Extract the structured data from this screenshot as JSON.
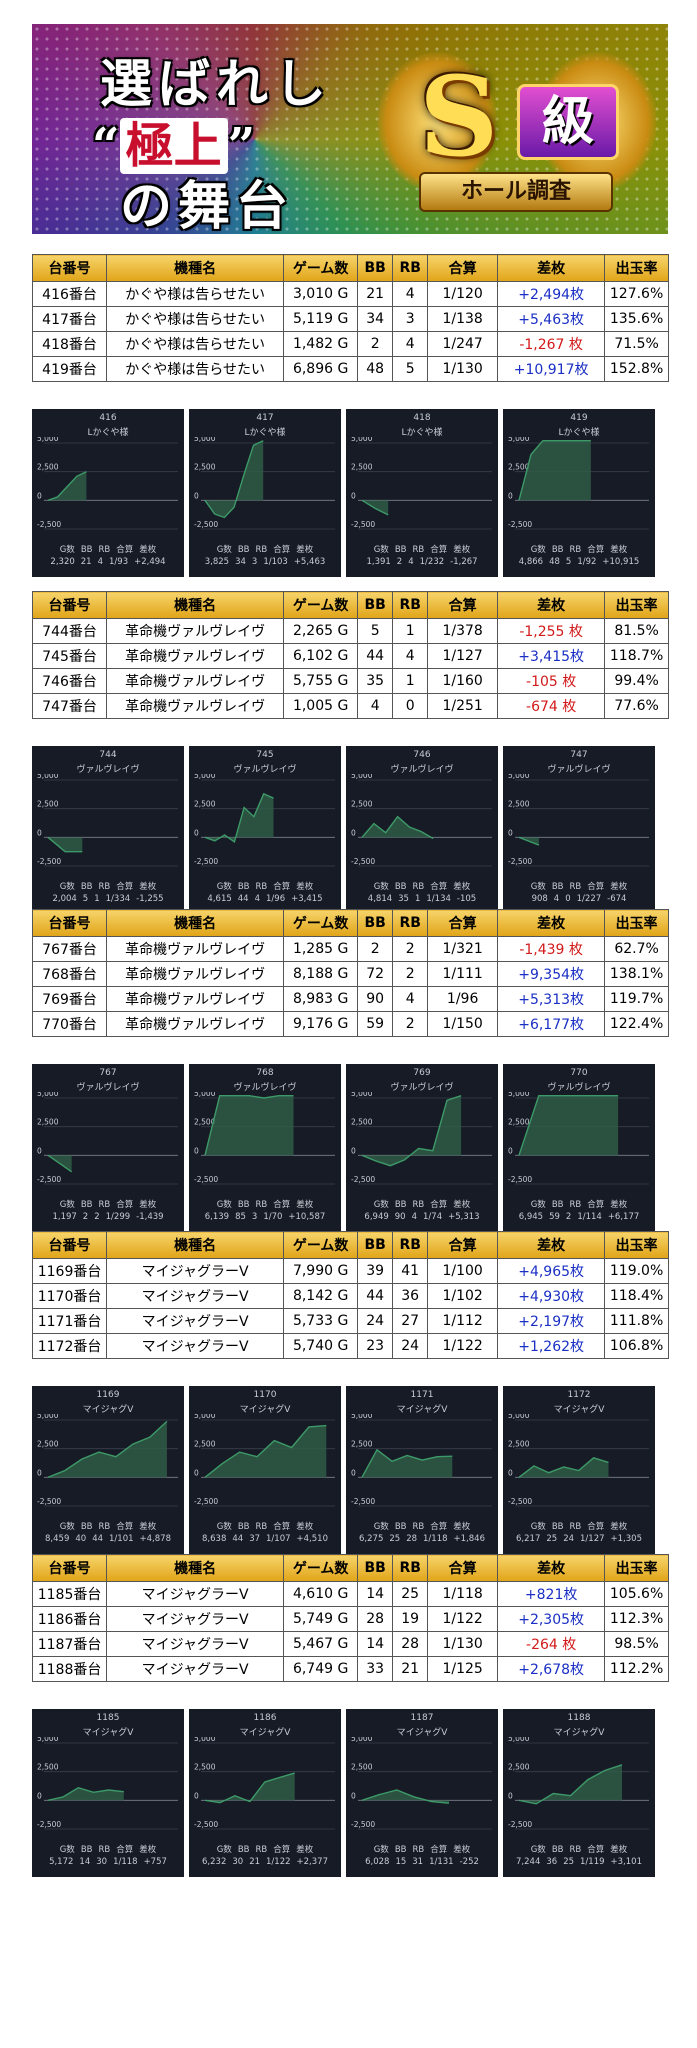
{
  "banner": {
    "line1": "選ばれし",
    "line2_open": "“",
    "line2_em": "極上",
    "line2_close": "”",
    "line3": "の舞台",
    "badge_letter": "S",
    "badge_kyu": "級",
    "badge_ribbon": "ホール調査"
  },
  "table_headers": [
    "台番号",
    "機種名",
    "ゲーム数",
    "BB",
    "RB",
    "合算",
    "差枚",
    "出玉率"
  ],
  "chart_stat_headers": [
    "G数",
    "BB",
    "RB",
    "合算",
    "差枚"
  ],
  "chart_axis": [
    "5,000",
    "2,500",
    "0",
    "-2,500"
  ],
  "sections": [
    {
      "rows": [
        {
          "no": "416番台",
          "model": "かぐや様は告らせたい",
          "games": "3,010 G",
          "bb": "21",
          "rb": "4",
          "total": "1/120",
          "diff": "+2,494枚",
          "rate": "127.6%"
        },
        {
          "no": "417番台",
          "model": "かぐや様は告らせたい",
          "games": "5,119 G",
          "bb": "34",
          "rb": "3",
          "total": "1/138",
          "diff": "+5,463枚",
          "rate": "135.6%"
        },
        {
          "no": "418番台",
          "model": "かぐや様は告らせたい",
          "games": "1,482 G",
          "bb": "2",
          "rb": "4",
          "total": "1/247",
          "diff": "-1,267 枚",
          "rate": "71.5%"
        },
        {
          "no": "419番台",
          "model": "かぐや様は告らせたい",
          "games": "6,896 G",
          "bb": "48",
          "rb": "5",
          "total": "1/130",
          "diff": "+10,917枚",
          "rate": "152.8%"
        }
      ],
      "charts": [
        {
          "id": "416",
          "name": "Lかぐや様",
          "g": "2,320",
          "bb": "21",
          "rb": "4",
          "total": "1/93",
          "diff": "+2,494",
          "curve": [
            0,
            300,
            1200,
            2100,
            2494
          ]
        },
        {
          "id": "417",
          "name": "Lかぐや様",
          "g": "3,825",
          "bb": "34",
          "rb": "3",
          "total": "1/103",
          "diff": "+5,463",
          "curve": [
            0,
            -1200,
            -1500,
            -600,
            2200,
            4800,
            5463
          ]
        },
        {
          "id": "418",
          "name": "Lかぐや様",
          "g": "1,391",
          "bb": "2",
          "rb": "4",
          "total": "1/232",
          "diff": "-1,267",
          "curve": [
            0,
            -700,
            -1267
          ]
        },
        {
          "id": "419",
          "name": "Lかぐや様",
          "g": "4,866",
          "bb": "48",
          "rb": "5",
          "total": "1/92",
          "diff": "+10,915",
          "curve": [
            0,
            4000,
            5200,
            5200,
            5200,
            5200,
            5200
          ]
        }
      ]
    },
    {
      "rows": [
        {
          "no": "744番台",
          "model": "革命機ヴァルヴレイヴ",
          "games": "2,265 G",
          "bb": "5",
          "rb": "1",
          "total": "1/378",
          "diff": "-1,255 枚",
          "rate": "81.5%"
        },
        {
          "no": "745番台",
          "model": "革命機ヴァルヴレイヴ",
          "games": "6,102 G",
          "bb": "44",
          "rb": "4",
          "total": "1/127",
          "diff": "+3,415枚",
          "rate": "118.7%"
        },
        {
          "no": "746番台",
          "model": "革命機ヴァルヴレイヴ",
          "games": "5,755 G",
          "bb": "35",
          "rb": "1",
          "total": "1/160",
          "diff": "-105 枚",
          "rate": "99.4%"
        },
        {
          "no": "747番台",
          "model": "革命機ヴァルヴレイヴ",
          "games": "1,005 G",
          "bb": "4",
          "rb": "0",
          "total": "1/251",
          "diff": "-674 枚",
          "rate": "77.6%"
        }
      ],
      "charts": [
        {
          "id": "744",
          "name": "ヴァルヴレイヴ",
          "g": "2,004",
          "bb": "5",
          "rb": "1",
          "total": "1/334",
          "diff": "-1,255",
          "curve": [
            0,
            -1255,
            -1255
          ]
        },
        {
          "id": "745",
          "name": "ヴァルヴレイヴ",
          "g": "4,615",
          "bb": "44",
          "rb": "4",
          "total": "1/96",
          "diff": "+3,415",
          "curve": [
            0,
            -300,
            200,
            -400,
            2600,
            1800,
            3800,
            3415
          ]
        },
        {
          "id": "746",
          "name": "ヴァルヴレイヴ",
          "g": "4,814",
          "bb": "35",
          "rb": "1",
          "total": "1/134",
          "diff": "-105",
          "curve": [
            0,
            1200,
            400,
            1800,
            900,
            500,
            -105
          ]
        },
        {
          "id": "747",
          "name": "ヴァルヴレイヴ",
          "g": "908",
          "bb": "4",
          "rb": "0",
          "total": "1/227",
          "diff": "-674",
          "curve": [
            0,
            -674
          ]
        }
      ]
    },
    {
      "rows": [
        {
          "no": "767番台",
          "model": "革命機ヴァルヴレイヴ",
          "games": "1,285 G",
          "bb": "2",
          "rb": "2",
          "total": "1/321",
          "diff": "-1,439 枚",
          "rate": "62.7%"
        },
        {
          "no": "768番台",
          "model": "革命機ヴァルヴレイヴ",
          "games": "8,188 G",
          "bb": "72",
          "rb": "2",
          "total": "1/111",
          "diff": "+9,354枚",
          "rate": "138.1%"
        },
        {
          "no": "769番台",
          "model": "革命機ヴァルヴレイヴ",
          "games": "8,983 G",
          "bb": "90",
          "rb": "4",
          "total": "1/96",
          "diff": "+5,313枚",
          "rate": "119.7%"
        },
        {
          "no": "770番台",
          "model": "革命機ヴァルヴレイヴ",
          "games": "9,176 G",
          "bb": "59",
          "rb": "2",
          "total": "1/150",
          "diff": "+6,177枚",
          "rate": "122.4%"
        }
      ],
      "charts": [
        {
          "id": "767",
          "name": "ヴァルヴレイヴ",
          "g": "1,197",
          "bb": "2",
          "rb": "2",
          "total": "1/299",
          "diff": "-1,439",
          "curve": [
            0,
            -1439
          ]
        },
        {
          "id": "768",
          "name": "ヴァルヴレイヴ",
          "g": "6,139",
          "bb": "85",
          "rb": "3",
          "total": "1/70",
          "diff": "+10,587",
          "curve": [
            0,
            5200,
            5200,
            5200,
            5000,
            5200,
            5200
          ]
        },
        {
          "id": "769",
          "name": "ヴァルヴレイヴ",
          "g": "6,949",
          "bb": "90",
          "rb": "4",
          "total": "1/74",
          "diff": "+5,313",
          "curve": [
            0,
            -500,
            -900,
            -400,
            600,
            400,
            4800,
            5313
          ]
        },
        {
          "id": "770",
          "name": "ヴァルヴレイヴ",
          "g": "6,945",
          "bb": "59",
          "rb": "2",
          "total": "1/114",
          "diff": "+6,177",
          "curve": [
            0,
            5200,
            5200,
            5200,
            5200,
            5200
          ]
        }
      ]
    },
    {
      "rows": [
        {
          "no": "1169番台",
          "model": "マイジャグラーV",
          "games": "7,990 G",
          "bb": "39",
          "rb": "41",
          "total": "1/100",
          "diff": "+4,965枚",
          "rate": "119.0%"
        },
        {
          "no": "1170番台",
          "model": "マイジャグラーV",
          "games": "8,142 G",
          "bb": "44",
          "rb": "36",
          "total": "1/102",
          "diff": "+4,930枚",
          "rate": "118.4%"
        },
        {
          "no": "1171番台",
          "model": "マイジャグラーV",
          "games": "5,733 G",
          "bb": "24",
          "rb": "27",
          "total": "1/112",
          "diff": "+2,197枚",
          "rate": "111.8%"
        },
        {
          "no": "1172番台",
          "model": "マイジャグラーV",
          "games": "5,740 G",
          "bb": "23",
          "rb": "24",
          "total": "1/122",
          "diff": "+1,262枚",
          "rate": "106.8%"
        }
      ],
      "charts": [
        {
          "id": "1169",
          "name": "マイジャグV",
          "g": "8,459",
          "bb": "40",
          "rb": "44",
          "total": "1/101",
          "diff": "+4,878",
          "curve": [
            0,
            600,
            1600,
            2200,
            1800,
            2900,
            3500,
            4878
          ]
        },
        {
          "id": "1170",
          "name": "マイジャグV",
          "g": "8,638",
          "bb": "44",
          "rb": "37",
          "total": "1/107",
          "diff": "+4,510",
          "curve": [
            0,
            1200,
            2200,
            1800,
            3200,
            2600,
            4400,
            4510
          ]
        },
        {
          "id": "1171",
          "name": "マイジャグV",
          "g": "6,275",
          "bb": "25",
          "rb": "28",
          "total": "1/118",
          "diff": "+1,846",
          "curve": [
            0,
            2400,
            1400,
            1900,
            1500,
            1800,
            1846
          ]
        },
        {
          "id": "1172",
          "name": "マイジャグV",
          "g": "6,217",
          "bb": "25",
          "rb": "24",
          "total": "1/127",
          "diff": "+1,305",
          "curve": [
            0,
            1000,
            400,
            900,
            600,
            1700,
            1305
          ]
        }
      ]
    },
    {
      "rows": [
        {
          "no": "1185番台",
          "model": "マイジャグラーV",
          "games": "4,610 G",
          "bb": "14",
          "rb": "25",
          "total": "1/118",
          "diff": "+821枚",
          "rate": "105.6%"
        },
        {
          "no": "1186番台",
          "model": "マイジャグラーV",
          "games": "5,749 G",
          "bb": "28",
          "rb": "19",
          "total": "1/122",
          "diff": "+2,305枚",
          "rate": "112.3%"
        },
        {
          "no": "1187番台",
          "model": "マイジャグラーV",
          "games": "5,467 G",
          "bb": "14",
          "rb": "28",
          "total": "1/130",
          "diff": "-264 枚",
          "rate": "98.5%"
        },
        {
          "no": "1188番台",
          "model": "マイジャグラーV",
          "games": "6,749 G",
          "bb": "33",
          "rb": "21",
          "total": "1/125",
          "diff": "+2,678枚",
          "rate": "112.2%"
        }
      ],
      "charts": [
        {
          "id": "1185",
          "name": "マイジャグV",
          "g": "5,172",
          "bb": "14",
          "rb": "30",
          "total": "1/118",
          "diff": "+757",
          "curve": [
            0,
            300,
            1100,
            700,
            900,
            757
          ]
        },
        {
          "id": "1186",
          "name": "マイジャグV",
          "g": "6,232",
          "bb": "30",
          "rb": "21",
          "total": "1/122",
          "diff": "+2,377",
          "curve": [
            0,
            -200,
            400,
            -100,
            1600,
            2000,
            2377
          ]
        },
        {
          "id": "1187",
          "name": "マイジャグV",
          "g": "6,028",
          "bb": "15",
          "rb": "31",
          "total": "1/131",
          "diff": "-252",
          "curve": [
            0,
            500,
            900,
            300,
            -100,
            -252
          ]
        },
        {
          "id": "1188",
          "name": "マイジャグV",
          "g": "7,244",
          "bb": "36",
          "rb": "25",
          "total": "1/119",
          "diff": "+3,101",
          "curve": [
            0,
            -300,
            600,
            400,
            1800,
            2600,
            3101
          ]
        }
      ]
    }
  ],
  "colors": {
    "plus": "#1a2fc4",
    "minus": "#d21a1a",
    "chart_bg": "#161b26",
    "chart_line": "#3d9a68",
    "chart_fill": "#2f5c47"
  }
}
